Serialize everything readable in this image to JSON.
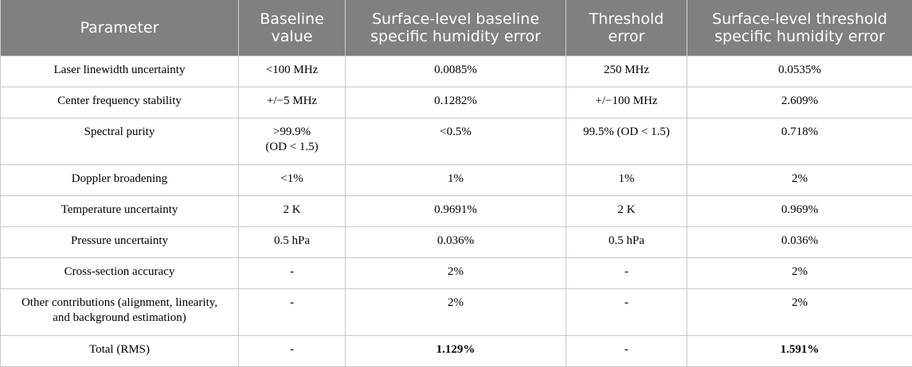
{
  "table": {
    "headers": [
      "Parameter",
      "Baseline value",
      "Surface-level baseline specific humidity error",
      "Threshold error",
      "Surface-level threshold specific humidity error"
    ],
    "header_lines": [
      [
        "Parameter"
      ],
      [
        "Baseline",
        "value"
      ],
      [
        "Surface-level baseline",
        "specific humidity error"
      ],
      [
        "Threshold",
        "error"
      ],
      [
        "Surface-level threshold",
        "specific humidity error"
      ]
    ],
    "rows": [
      {
        "parameter": [
          "Laser linewidth uncertainty"
        ],
        "baseline": [
          "<100 MHz"
        ],
        "baseline_error": "0.0085%",
        "threshold": [
          "250 MHz"
        ],
        "threshold_error": "0.0535%"
      },
      {
        "parameter": [
          "Center frequency stability"
        ],
        "baseline": [
          "+/−5 MHz"
        ],
        "baseline_error": "0.1282%",
        "threshold": [
          "+/−100 MHz"
        ],
        "threshold_error": "2.609%"
      },
      {
        "parameter": [
          "Spectral purity"
        ],
        "baseline": [
          ">99.9%",
          "(OD < 1.5)"
        ],
        "baseline_error": "<0.5%",
        "threshold": [
          "99.5% (OD < 1.5)"
        ],
        "threshold_error": "0.718%"
      },
      {
        "parameter": [
          "Doppler broadening"
        ],
        "baseline": [
          "<1%"
        ],
        "baseline_error": "1%",
        "threshold": [
          "1%"
        ],
        "threshold_error": "2%"
      },
      {
        "parameter": [
          "Temperature uncertainty"
        ],
        "baseline": [
          "2 K"
        ],
        "baseline_error": "0.9691%",
        "threshold": [
          "2 K"
        ],
        "threshold_error": "0.969%"
      },
      {
        "parameter": [
          "Pressure uncertainty"
        ],
        "baseline": [
          "0.5 hPa"
        ],
        "baseline_error": "0.036%",
        "threshold": [
          "0.5 hPa"
        ],
        "threshold_error": "0.036%"
      },
      {
        "parameter": [
          "Cross-section accuracy"
        ],
        "baseline": [
          "-"
        ],
        "baseline_error": "2%",
        "threshold": [
          "-"
        ],
        "threshold_error": "2%"
      },
      {
        "parameter": [
          "Other contributions (alignment, linearity,",
          "and background estimation)"
        ],
        "baseline": [
          "-"
        ],
        "baseline_error": "2%",
        "threshold": [
          "-"
        ],
        "threshold_error": "2%"
      },
      {
        "parameter": [
          "Total (RMS)"
        ],
        "baseline": [
          "-"
        ],
        "baseline_error": "1.129%",
        "threshold": [
          "-"
        ],
        "threshold_error": "1.591%"
      }
    ]
  }
}
